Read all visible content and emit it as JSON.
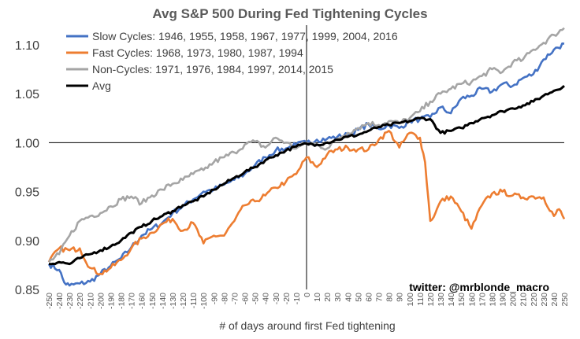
{
  "chart_data": {
    "type": "line",
    "title": "Avg S&P 500 During Fed Tightening Cycles",
    "xlabel": "# of days around first Fed tightening",
    "ylabel": "",
    "xlim": [
      -250,
      250
    ],
    "ylim": [
      0.85,
      1.12
    ],
    "yticks": [
      "0.85",
      "0.90",
      "0.95",
      "1.00",
      "1.05",
      "1.10"
    ],
    "ytick_values": [
      0.85,
      0.9,
      0.95,
      1.0,
      1.05,
      1.1
    ],
    "xticks": [
      "-250",
      "-240",
      "-230",
      "-220",
      "-210",
      "-200",
      "-190",
      "-180",
      "-170",
      "-160",
      "-150",
      "-140",
      "-130",
      "-120",
      "-110",
      "-100",
      "-90",
      "-80",
      "-70",
      "-60",
      "-50",
      "-40",
      "-30",
      "-20",
      "-10",
      "0",
      "10",
      "20",
      "30",
      "40",
      "50",
      "60",
      "70",
      "80",
      "90",
      "100",
      "110",
      "120",
      "130",
      "140",
      "150",
      "160",
      "170",
      "180",
      "190",
      "200",
      "210",
      "220",
      "230",
      "240",
      "250"
    ],
    "reference_lines": {
      "x": 0,
      "y": 1.0
    },
    "grid": false,
    "legend_position": "top-left",
    "credit": "twitter: @mrblonde_macro",
    "series": [
      {
        "name": "Slow Cycles: 1946, 1955, 1958, 1967, 1977, 1999, 2004, 2016",
        "color": "#4472C4",
        "x": [
          -250,
          -240,
          -235,
          -230,
          -220,
          -210,
          -200,
          -190,
          -180,
          -170,
          -160,
          -150,
          -140,
          -130,
          -120,
          -110,
          -100,
          -90,
          -80,
          -70,
          -60,
          -50,
          -40,
          -30,
          -20,
          -10,
          0,
          10,
          20,
          30,
          40,
          50,
          60,
          70,
          80,
          90,
          100,
          110,
          120,
          130,
          140,
          150,
          160,
          170,
          180,
          190,
          200,
          210,
          220,
          230,
          240,
          250
        ],
        "y": [
          0.876,
          0.87,
          0.857,
          0.854,
          0.856,
          0.858,
          0.866,
          0.874,
          0.882,
          0.893,
          0.905,
          0.912,
          0.918,
          0.928,
          0.935,
          0.942,
          0.95,
          0.952,
          0.957,
          0.962,
          0.968,
          0.977,
          0.985,
          0.992,
          0.994,
          0.998,
          1.0,
          1.003,
          1.004,
          1.006,
          1.008,
          1.013,
          1.019,
          1.014,
          1.018,
          1.015,
          1.022,
          1.024,
          1.026,
          1.036,
          1.03,
          1.045,
          1.048,
          1.055,
          1.052,
          1.06,
          1.058,
          1.066,
          1.07,
          1.085,
          1.095,
          1.101
        ]
      },
      {
        "name": "Fast Cycles: 1968, 1973, 1980, 1987, 1994",
        "color": "#ED7D31",
        "x": [
          -250,
          -240,
          -230,
          -220,
          -210,
          -200,
          -190,
          -180,
          -170,
          -160,
          -150,
          -140,
          -130,
          -120,
          -110,
          -100,
          -90,
          -80,
          -70,
          -60,
          -50,
          -40,
          -30,
          -20,
          -10,
          0,
          10,
          20,
          30,
          40,
          50,
          60,
          70,
          80,
          90,
          100,
          110,
          115,
          120,
          125,
          130,
          140,
          150,
          160,
          170,
          180,
          190,
          200,
          210,
          220,
          230,
          240,
          245,
          250
        ],
        "y": [
          0.878,
          0.892,
          0.89,
          0.892,
          0.872,
          0.866,
          0.872,
          0.88,
          0.892,
          0.902,
          0.908,
          0.917,
          0.922,
          0.91,
          0.918,
          0.897,
          0.905,
          0.905,
          0.92,
          0.936,
          0.94,
          0.946,
          0.954,
          0.96,
          0.968,
          0.985,
          0.975,
          0.988,
          0.993,
          0.995,
          0.993,
          0.993,
          1.003,
          1.012,
          0.995,
          1.01,
          1.005,
          0.98,
          0.92,
          0.928,
          0.94,
          0.945,
          0.93,
          0.912,
          0.936,
          0.948,
          0.95,
          0.946,
          0.944,
          0.945,
          0.944,
          0.925,
          0.932,
          0.922
        ]
      },
      {
        "name": "Non-Cycles: 1971, 1976, 1984, 1997, 2014, 2015",
        "color": "#A5A5A5",
        "x": [
          -250,
          -240,
          -230,
          -220,
          -210,
          -200,
          -190,
          -180,
          -170,
          -160,
          -150,
          -140,
          -130,
          -120,
          -110,
          -100,
          -90,
          -80,
          -70,
          -60,
          -50,
          -40,
          -30,
          -20,
          -10,
          0,
          10,
          20,
          30,
          40,
          50,
          60,
          70,
          80,
          90,
          100,
          110,
          120,
          130,
          140,
          150,
          160,
          170,
          180,
          190,
          200,
          210,
          220,
          230,
          240,
          250
        ],
        "y": [
          0.878,
          0.886,
          0.905,
          0.92,
          0.925,
          0.928,
          0.935,
          0.942,
          0.945,
          0.938,
          0.946,
          0.952,
          0.958,
          0.962,
          0.968,
          0.972,
          0.98,
          0.985,
          0.99,
          0.998,
          1.001,
          0.995,
          1.005,
          1.0,
          0.994,
          1.0,
          0.998,
          0.994,
          1.004,
          1.01,
          1.015,
          1.02,
          1.018,
          1.022,
          1.02,
          1.025,
          1.032,
          1.042,
          1.05,
          1.055,
          1.06,
          1.062,
          1.068,
          1.075,
          1.072,
          1.082,
          1.085,
          1.095,
          1.102,
          1.11,
          1.117
        ]
      },
      {
        "name": "Avg",
        "color": "#000000",
        "x": [
          -250,
          -240,
          -230,
          -220,
          -210,
          -200,
          -190,
          -180,
          -170,
          -160,
          -150,
          -140,
          -130,
          -120,
          -110,
          -100,
          -90,
          -80,
          -70,
          -60,
          -50,
          -40,
          -30,
          -20,
          -10,
          0,
          10,
          20,
          30,
          40,
          50,
          60,
          70,
          80,
          90,
          100,
          110,
          120,
          130,
          140,
          150,
          160,
          170,
          180,
          190,
          200,
          210,
          220,
          230,
          240,
          250
        ],
        "y": [
          0.876,
          0.878,
          0.876,
          0.882,
          0.886,
          0.89,
          0.894,
          0.9,
          0.908,
          0.914,
          0.92,
          0.925,
          0.93,
          0.936,
          0.94,
          0.945,
          0.952,
          0.958,
          0.964,
          0.97,
          0.975,
          0.982,
          0.987,
          0.992,
          0.996,
          0.999,
          0.998,
          1.0,
          1.003,
          1.006,
          1.008,
          1.012,
          1.016,
          1.018,
          1.02,
          1.022,
          1.025,
          1.024,
          1.01,
          1.012,
          1.015,
          1.02,
          1.025,
          1.028,
          1.032,
          1.035,
          1.038,
          1.042,
          1.048,
          1.053,
          1.058
        ]
      }
    ]
  }
}
